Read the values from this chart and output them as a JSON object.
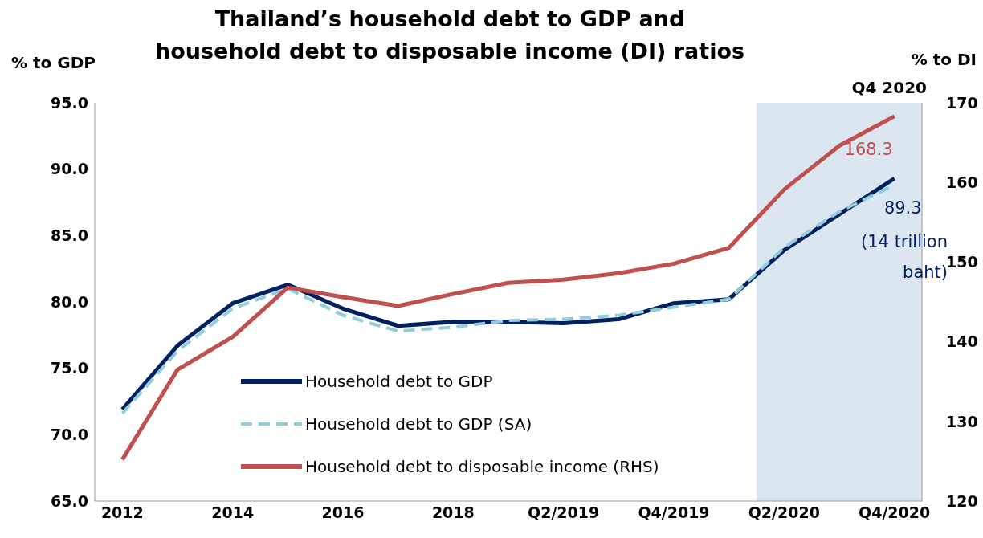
{
  "chart_data": {
    "type": "line",
    "title": "Thailand’s household debt to GDP and\nhousehold debt to disposable income (DI) ratios",
    "ylabel": "% to GDP",
    "y2label": "% to DI",
    "categories": [
      "2012",
      null,
      "2014",
      null,
      "2016",
      null,
      "2018",
      null,
      "Q2/2019",
      null,
      "Q4/2019",
      null,
      "Q2/2020",
      null,
      "Q4/2020"
    ],
    "series": [
      {
        "name": "Household debt to GDP",
        "color": "#002060",
        "line_style": "solid",
        "values": [
          71.9,
          76.7,
          79.9,
          81.3,
          79.5,
          78.2,
          78.5,
          78.5,
          78.4,
          78.7,
          79.9,
          80.2,
          83.9,
          86.6,
          89.3
        ],
        "value_labels": [
          null,
          null,
          null,
          null,
          null,
          null,
          null,
          null,
          null,
          null,
          null,
          null,
          null,
          null,
          "89.3"
        ]
      },
      {
        "name": "Household debt to GDP (SA)",
        "color": "#92cddc",
        "line_style": "dashed",
        "values": [
          71.6,
          76.3,
          79.5,
          81.0,
          79.0,
          77.8,
          78.1,
          78.6,
          78.7,
          79.0,
          79.6,
          80.2,
          84.1,
          86.8,
          88.8
        ]
      },
      {
        "name": "Household debt to disposable income (RHS)",
        "color": "#c0504d",
        "line_style": "solid",
        "axis": "y2",
        "values": [
          125.2,
          136.5,
          140.6,
          146.8,
          145.6,
          144.5,
          146.0,
          147.4,
          147.8,
          148.6,
          149.8,
          151.8,
          159.1,
          164.6,
          168.3
        ],
        "value_labels": [
          null,
          null,
          null,
          null,
          null,
          null,
          null,
          null,
          null,
          null,
          null,
          null,
          null,
          null,
          "168.3"
        ]
      }
    ],
    "ylim": [
      65,
      95
    ],
    "yticks": [
      {
        "value": 65,
        "label": "65.0"
      },
      {
        "value": 70,
        "label": "70.0"
      },
      {
        "value": 75,
        "label": "75.0"
      },
      {
        "value": 80,
        "label": "80.0"
      },
      {
        "value": 85,
        "label": "85.0"
      },
      {
        "value": 90,
        "label": "90.0"
      },
      {
        "value": 95,
        "label": "95.0"
      }
    ],
    "y2lim": [
      120,
      170
    ],
    "y2ticks": [
      120,
      130,
      140,
      150,
      160,
      170
    ],
    "bands": [
      {
        "axis": "x",
        "from": "Q2/2020",
        "to": "Q4/2020",
        "label": "Q4 2020",
        "color": "#dce6f1"
      }
    ],
    "annotations": [
      "(14 trillion\nbaht)"
    ],
    "grid": false,
    "legend": "bottom left",
    "marker": "none"
  }
}
